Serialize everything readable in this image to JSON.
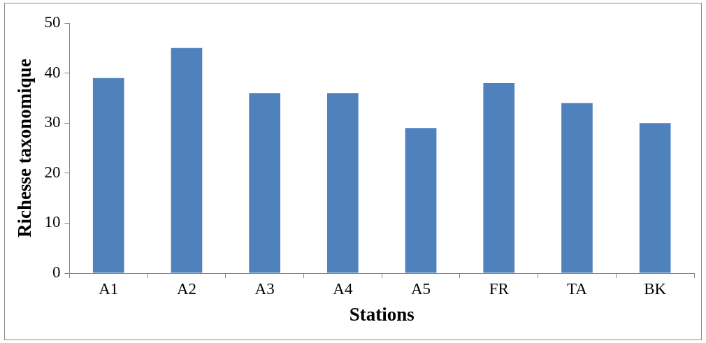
{
  "chart_data": {
    "type": "bar",
    "xlabel": "Stations",
    "ylabel": "Richesse taxonomique",
    "categories": [
      "A1",
      "A2",
      "A3",
      "A4",
      "A5",
      "FR",
      "TA",
      "BK"
    ],
    "values": [
      39,
      45,
      36,
      36,
      29,
      38,
      34,
      30
    ],
    "color": "#4f81bd",
    "ylim": [
      0,
      50
    ],
    "yticks": [
      0,
      10,
      20,
      30,
      40,
      50
    ],
    "grid": false,
    "legend": false
  }
}
